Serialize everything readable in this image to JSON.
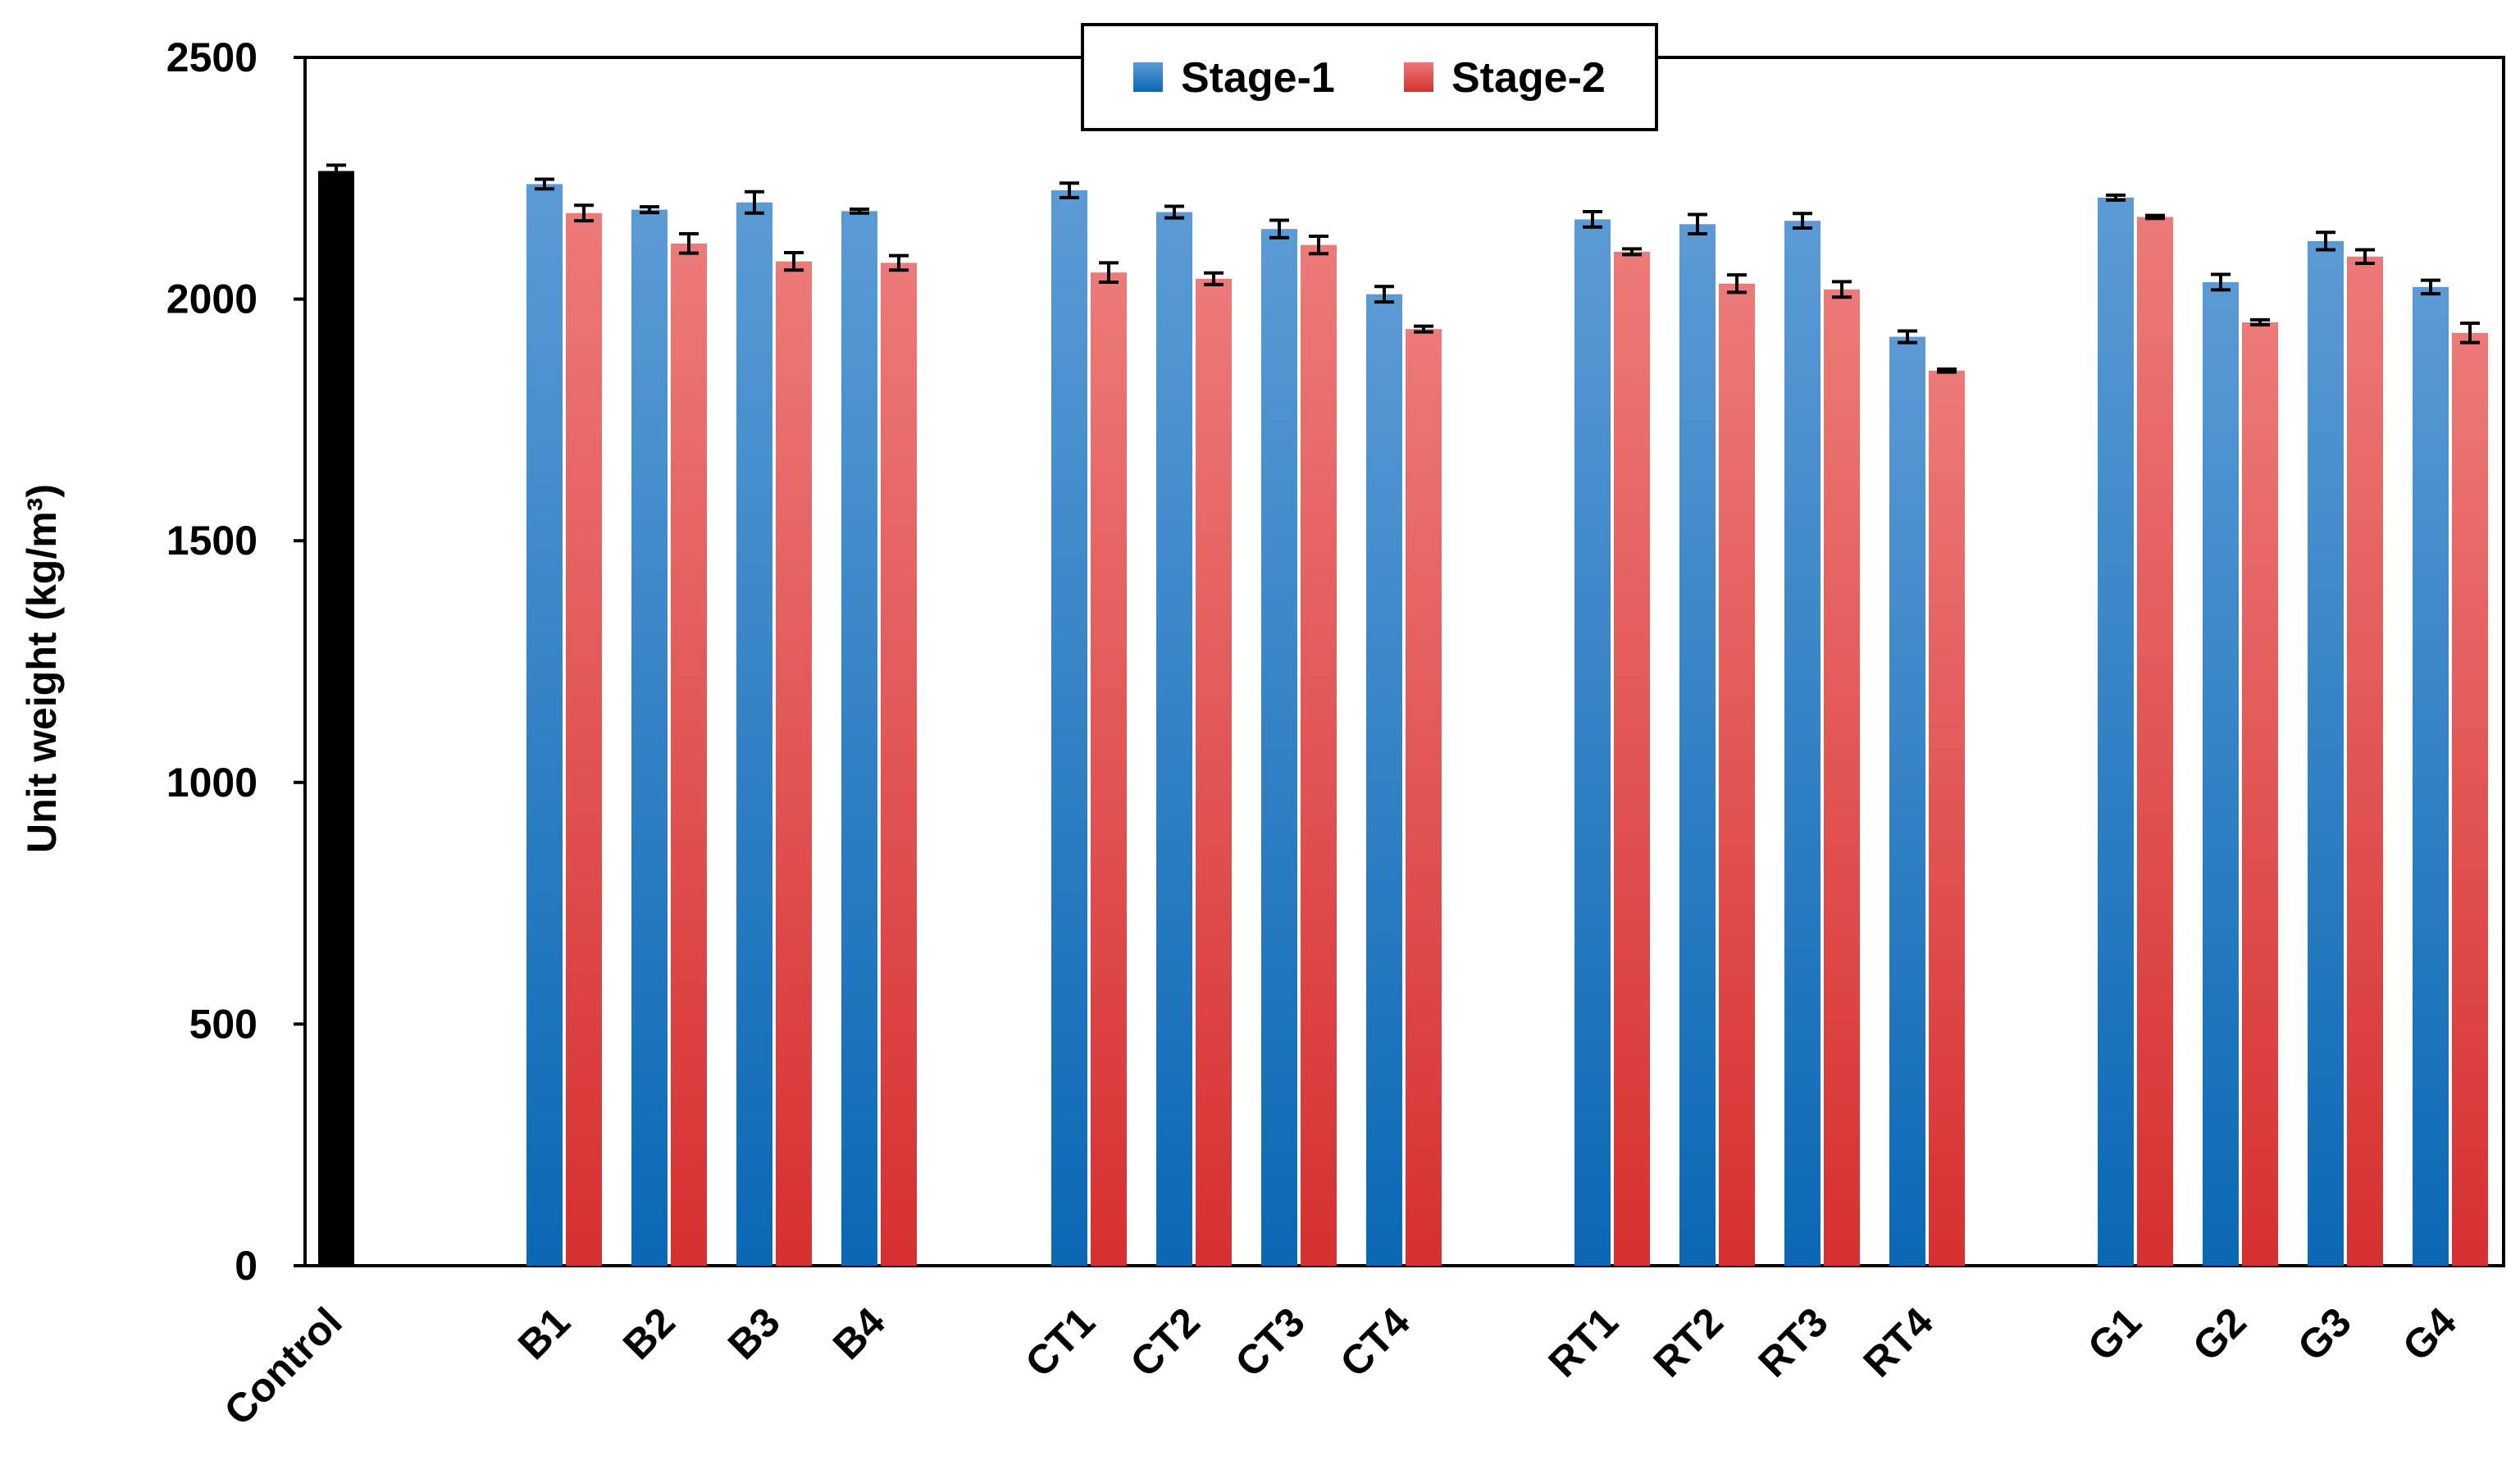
{
  "chart_data": {
    "type": "bar",
    "title": "",
    "xlabel": "",
    "ylabel": "Unit weight (kg/m³)",
    "ylim": [
      0,
      2500
    ],
    "yticks": [
      0,
      500,
      1000,
      1500,
      2000,
      2500
    ],
    "grid": false,
    "legend_position": "top-center",
    "colors": {
      "control": "#000000",
      "stage1": "#1f6fb4",
      "stage1_light": "#5b9bd5",
      "stage2": "#d63c3c",
      "stage2_light": "#ec7a78"
    },
    "control": {
      "label": "Control",
      "value": 2265,
      "error": 12
    },
    "groups": [
      {
        "categories": [
          "B1",
          "B2",
          "B3",
          "B4"
        ]
      },
      {
        "categories": [
          "CT1",
          "CT2",
          "CT3",
          "CT4"
        ]
      },
      {
        "categories": [
          "RT1",
          "RT2",
          "RT3",
          "RT4"
        ]
      },
      {
        "categories": [
          "G1",
          "G2",
          "G3",
          "G4"
        ]
      }
    ],
    "categories": [
      "B1",
      "B2",
      "B3",
      "B4",
      "CT1",
      "CT2",
      "CT3",
      "CT4",
      "RT1",
      "RT2",
      "RT3",
      "RT4",
      "G1",
      "G2",
      "G3",
      "G4"
    ],
    "series": [
      {
        "name": "Stage-1",
        "values": [
          2238,
          2185,
          2200,
          2182,
          2225,
          2180,
          2145,
          2010,
          2165,
          2155,
          2162,
          1922,
          2210,
          2035,
          2120,
          2025
        ],
        "errors": [
          10,
          6,
          22,
          4,
          15,
          12,
          18,
          16,
          16,
          20,
          15,
          12,
          5,
          16,
          18,
          14
        ]
      },
      {
        "name": "Stage-2",
        "values": [
          2178,
          2115,
          2078,
          2075,
          2055,
          2042,
          2112,
          1938,
          2098,
          2032,
          2020,
          1852,
          2170,
          1952,
          2088,
          1930
        ],
        "errors": [
          16,
          20,
          18,
          15,
          20,
          12,
          18,
          6,
          6,
          18,
          16,
          3,
          3,
          5,
          14,
          20
        ]
      }
    ]
  }
}
